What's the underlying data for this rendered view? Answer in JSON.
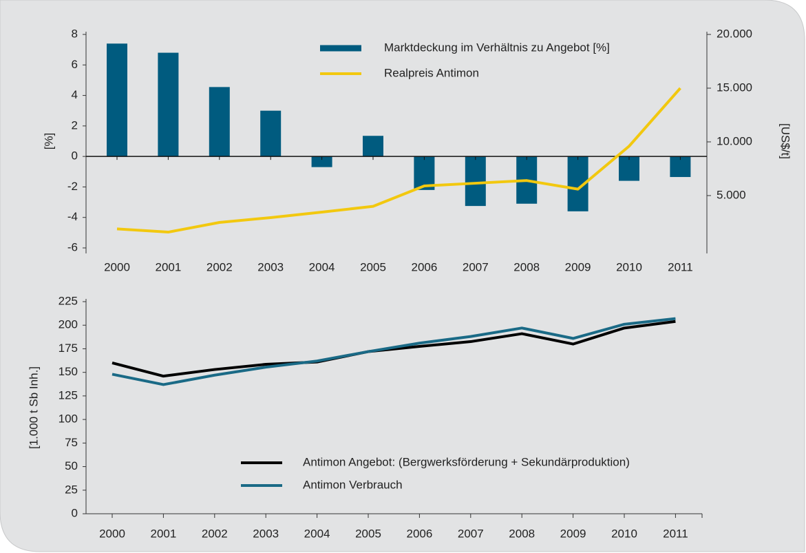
{
  "chart_data": [
    {
      "type": "bar",
      "categories": [
        "2000",
        "2001",
        "2002",
        "2003",
        "2004",
        "2005",
        "2006",
        "2007",
        "2008",
        "2009",
        "2010",
        "2011"
      ],
      "series": [
        {
          "name": "Marktdeckung im Verhältnis zu Angebot [%]",
          "type": "bar",
          "color": "#005b7f",
          "values": [
            7.4,
            6.8,
            4.55,
            3.0,
            -0.7,
            1.35,
            -2.2,
            -3.25,
            -3.1,
            -3.6,
            -1.6,
            -1.35
          ]
        },
        {
          "name": "Realpreis Antimon",
          "type": "line",
          "axis": "y2",
          "color": "#f2c80f",
          "values": [
            1900,
            1600,
            2500,
            2950,
            3460,
            4000,
            5900,
            6150,
            6400,
            5600,
            9600,
            15000
          ]
        }
      ],
      "ylabel": "[%]",
      "y2label": "[US$/t]",
      "ylim": [
        -6,
        8
      ],
      "yticks": [
        -6,
        -4,
        -2,
        0,
        2,
        4,
        6,
        8
      ],
      "y2lim": [
        0,
        20000
      ],
      "y2ticks": [
        {
          "value": 5000,
          "label": "5.000"
        },
        {
          "value": 10000,
          "label": "10.000"
        },
        {
          "value": 15000,
          "label": "15.000"
        },
        {
          "value": 20000,
          "label": "20.000"
        }
      ]
    },
    {
      "type": "line",
      "categories": [
        "2000",
        "2001",
        "2002",
        "2003",
        "2004",
        "2005",
        "2006",
        "2007",
        "2008",
        "2009",
        "2010",
        "2011"
      ],
      "series": [
        {
          "name": "Antimon Angebot: (Bergwerksförderung + Sekundärproduktion)",
          "color": "#000000",
          "values": [
            160,
            146,
            153,
            158.5,
            161,
            172,
            177.5,
            182.6,
            191,
            180,
            197,
            204
          ]
        },
        {
          "name": "Antimon Verbrauch",
          "color": "#1a6a86",
          "values": [
            148,
            137,
            147,
            155.5,
            162,
            172,
            181,
            188,
            197,
            186,
            201,
            207
          ]
        }
      ],
      "ylabel": "[1.000 t Sb Inh.]",
      "ylim": [
        0,
        225
      ],
      "yticks": [
        0,
        25,
        50,
        75,
        100,
        125,
        150,
        175,
        200,
        225
      ]
    }
  ]
}
